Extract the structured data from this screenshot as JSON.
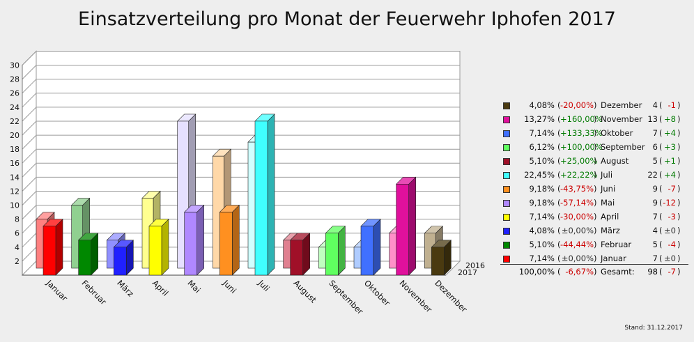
{
  "chart_data": {
    "type": "bar",
    "title": "Einsatzverteilung pro Monat der Feuerwehr Iphofen 2017",
    "categories": [
      "Januar",
      "Februar",
      "März",
      "April",
      "Mai",
      "Juni",
      "Juli",
      "August",
      "September",
      "Oktober",
      "November",
      "Dezember"
    ],
    "series": [
      {
        "name": "2016",
        "values": [
          7,
          9,
          4,
          10,
          21,
          16,
          18,
          4,
          3,
          3,
          5,
          5
        ],
        "colors": [
          "#ff8080",
          "#90d090",
          "#9090ff",
          "#ffff90",
          "#e6e0ff",
          "#ffd8a8",
          "#d0ffff",
          "#e08090",
          "#c0ffc0",
          "#b0ccff",
          "#ff90c8",
          "#c0b090"
        ]
      },
      {
        "name": "2017",
        "values": [
          7,
          5,
          4,
          7,
          9,
          9,
          22,
          5,
          6,
          7,
          13,
          4
        ],
        "colors": [
          "#ff0000",
          "#008800",
          "#2020ff",
          "#ffff00",
          "#b088ff",
          "#ff9020",
          "#40ffff",
          "#a01028",
          "#60ff60",
          "#4070ff",
          "#e0109c",
          "#4a3a10"
        ]
      }
    ],
    "ylim": [
      0,
      30
    ],
    "yticks": [
      2,
      4,
      6,
      8,
      10,
      12,
      14,
      16,
      18,
      20,
      22,
      24,
      26,
      28,
      30
    ],
    "grid": true,
    "legend_position": "right"
  },
  "legend": {
    "items": [
      {
        "color": "#4a3a10",
        "pct": "4,08%",
        "change": "-20,00%",
        "change_sign": "neg",
        "month": "Dezember",
        "count": "4",
        "delta": "-1",
        "delta_sign": "neg"
      },
      {
        "color": "#e0109c",
        "pct": "13,27%",
        "change": "+160,00%",
        "change_sign": "pos",
        "month": "November",
        "count": "13",
        "delta": "+8",
        "delta_sign": "pos"
      },
      {
        "color": "#4070ff",
        "pct": "7,14%",
        "change": "+133,33%",
        "change_sign": "pos",
        "month": "Oktober",
        "count": "7",
        "delta": "+4",
        "delta_sign": "pos"
      },
      {
        "color": "#60ff60",
        "pct": "6,12%",
        "change": "+100,00%",
        "change_sign": "pos",
        "month": "September",
        "count": "6",
        "delta": "+3",
        "delta_sign": "pos"
      },
      {
        "color": "#a01028",
        "pct": "5,10%",
        "change": "+25,00%",
        "change_sign": "pos",
        "month": "August",
        "count": "5",
        "delta": "+1",
        "delta_sign": "pos"
      },
      {
        "color": "#40ffff",
        "pct": "22,45%",
        "change": "+22,22%",
        "change_sign": "pos",
        "month": "Juli",
        "count": "22",
        "delta": "+4",
        "delta_sign": "pos"
      },
      {
        "color": "#ff9020",
        "pct": "9,18%",
        "change": "-43,75%",
        "change_sign": "neg",
        "month": "Juni",
        "count": "9",
        "delta": "-7",
        "delta_sign": "neg"
      },
      {
        "color": "#b088ff",
        "pct": "9,18%",
        "change": "-57,14%",
        "change_sign": "neg",
        "month": "Mai",
        "count": "9",
        "delta": "-12",
        "delta_sign": "neg"
      },
      {
        "color": "#ffff00",
        "pct": "7,14%",
        "change": "-30,00%",
        "change_sign": "neg",
        "month": "April",
        "count": "7",
        "delta": "-3",
        "delta_sign": "neg"
      },
      {
        "color": "#2020ff",
        "pct": "4,08%",
        "change": "±0,00%",
        "change_sign": "zero",
        "month": "März",
        "count": "4",
        "delta": "±0",
        "delta_sign": "zero"
      },
      {
        "color": "#008800",
        "pct": "5,10%",
        "change": "-44,44%",
        "change_sign": "neg",
        "month": "Februar",
        "count": "5",
        "delta": "-4",
        "delta_sign": "neg"
      },
      {
        "color": "#ff0000",
        "pct": "7,14%",
        "change": "±0,00%",
        "change_sign": "zero",
        "month": "Januar",
        "count": "7",
        "delta": "±0",
        "delta_sign": "zero"
      }
    ],
    "total": {
      "pct": "100,00%",
      "change": "-6,67%",
      "label": "Gesamt:",
      "count": "98",
      "delta": "-7"
    }
  },
  "footer": {
    "stand": "Stand: 31.12.2017"
  }
}
